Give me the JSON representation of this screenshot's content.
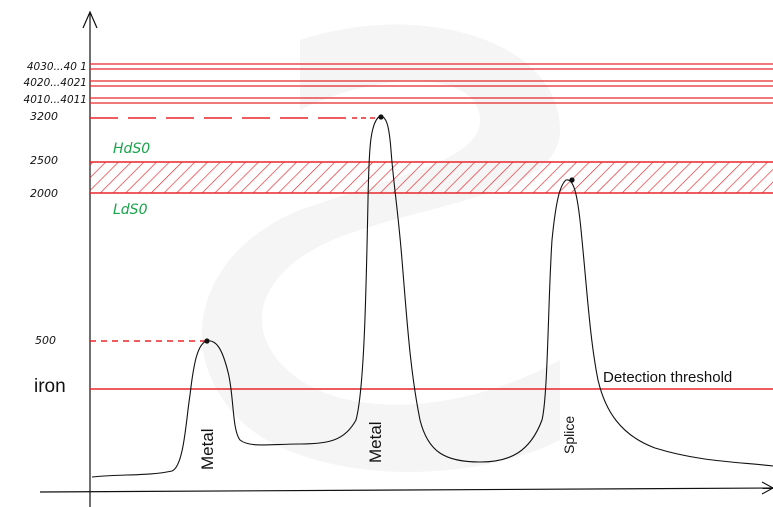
{
  "levels": [
    {
      "label": "4030...40  1",
      "value": 4030
    },
    {
      "label": "4020...4021",
      "value": 4020
    },
    {
      "label": "4010...4011",
      "value": 4010
    },
    {
      "label": "3200",
      "value": 3200
    },
    {
      "label": "2500",
      "value": 2500
    },
    {
      "label": "2000",
      "value": 2000
    },
    {
      "label": "500",
      "value": 500
    }
  ],
  "iron_label": "iron",
  "zones": {
    "high": "HdS0",
    "low": "LdS0"
  },
  "threshold_label": "Detection threshold",
  "peaks": [
    {
      "label": "Metal",
      "peak_value": 500
    },
    {
      "label": "Metal",
      "peak_value": 3200
    },
    {
      "label": "Splice",
      "peak_value": 2300
    }
  ],
  "colors": {
    "line": "#e8262b",
    "text": "#111111",
    "zone_text": "#1aa34a",
    "watermark": "#f3f3f3"
  }
}
